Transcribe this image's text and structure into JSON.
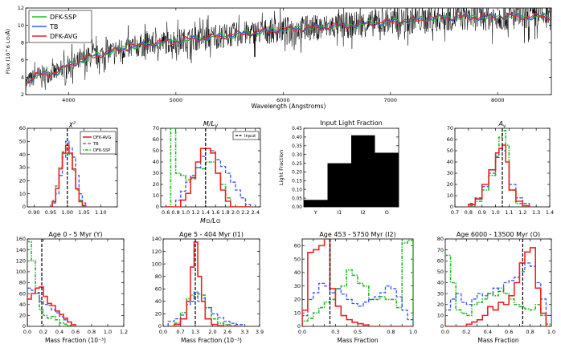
{
  "figure": {
    "spectrum_title": "",
    "colors": {
      "dfk_ssp": "#22bb22",
      "tb": "#3355ee",
      "dfk_avg": "#ee2222",
      "data": "#000000",
      "bar": "#000000"
    }
  },
  "chart_data": [
    {
      "id": "spectrum",
      "type": "line",
      "xlabel": "Wavelength (Angstroms)",
      "ylabel": "Flux (10^6 L⊙/Å)",
      "xlim": [
        3600,
        8500
      ],
      "ylim": [
        2,
        12
      ],
      "xticks": [
        4000,
        5000,
        6000,
        7000,
        8000
      ],
      "yticks": [
        2,
        4,
        6,
        8,
        10,
        12
      ],
      "legend": [
        "DFK-SSP",
        "TB",
        "DFK-AVG"
      ],
      "continuum_x": [
        3600,
        3700,
        3800,
        3900,
        4000,
        4200,
        4500,
        4800,
        5000,
        5300,
        5600,
        6000,
        6500,
        7000,
        7500,
        8000,
        8500
      ],
      "continuum_y": [
        3.3,
        4.2,
        4.4,
        4.6,
        5.4,
        6.3,
        7.3,
        7.9,
        8.2,
        8.6,
        9.0,
        9.5,
        9.9,
        10.4,
        10.9,
        11.0,
        11.0
      ]
    },
    {
      "id": "chi2",
      "type": "histogram",
      "title": "χ²",
      "xlim": [
        0.88,
        1.15
      ],
      "ylim": [
        0,
        60
      ],
      "xticks": [
        0.9,
        0.95,
        1.0,
        1.05,
        1.1
      ],
      "xtick_labels": [
        "0.90",
        "0.95",
        "1.00",
        "1.05",
        "1.10"
      ],
      "yticks": [
        0,
        10,
        20,
        30,
        40,
        50,
        60
      ],
      "input_line": 1.0,
      "legend": [
        "DFK-AVG",
        "TB",
        "DFK-SSP"
      ],
      "bin_edges": [
        0.955,
        0.965,
        0.975,
        0.985,
        0.995,
        1.005,
        1.015,
        1.025,
        1.035,
        1.045,
        1.055
      ],
      "series": [
        {
          "name": "DFK-AVG",
          "values": [
            4,
            14,
            29,
            41,
            47,
            41,
            29,
            14,
            4,
            1
          ]
        },
        {
          "name": "TB",
          "values": [
            3,
            10,
            24,
            38,
            50,
            45,
            38,
            24,
            10,
            3
          ]
        },
        {
          "name": "DFK-SSP",
          "values": [
            5,
            16,
            30,
            42,
            45,
            40,
            28,
            13,
            5,
            1
          ]
        }
      ]
    },
    {
      "id": "ml",
      "type": "histogram",
      "title": "M/L_V",
      "xlabel": "M⊙/L⊙",
      "xlim": [
        0.5,
        2.5
      ],
      "ylim": [
        0,
        70
      ],
      "xticks": [
        0.6,
        0.8,
        1.0,
        1.2,
        1.4,
        1.6,
        1.8,
        2.0,
        2.2,
        2.4
      ],
      "xtick_labels": [
        "0.6",
        "0.8",
        "1.0",
        "1.2",
        "1.4",
        "1.6",
        "1.8",
        "2.0",
        "2.2",
        "2.4"
      ],
      "yticks": [
        0,
        10,
        20,
        30,
        40,
        50,
        60,
        70
      ],
      "input_line": 1.4,
      "input_label": "Input",
      "bin_edges": [
        0.6,
        0.7,
        0.8,
        0.9,
        1.0,
        1.1,
        1.2,
        1.3,
        1.4,
        1.5,
        1.6,
        1.7,
        1.8,
        1.9,
        2.0,
        2.1,
        2.2,
        2.3
      ],
      "series": [
        {
          "name": "DFK-AVG",
          "values": [
            0,
            0,
            0,
            6,
            12,
            26,
            40,
            52,
            52,
            48,
            30,
            15,
            5,
            0,
            0,
            0,
            0
          ]
        },
        {
          "name": "TB",
          "values": [
            0,
            0,
            6,
            14,
            22,
            28,
            35,
            45,
            52,
            50,
            42,
            36,
            30,
            22,
            15,
            8,
            2
          ]
        },
        {
          "name": "DFK-SSP",
          "values": [
            0,
            70,
            30,
            28,
            24,
            25,
            35,
            34,
            40,
            40,
            30,
            20,
            8,
            0,
            0,
            0,
            0
          ]
        }
      ]
    },
    {
      "id": "lightfrac",
      "type": "bar",
      "title": "Input Light Fraction",
      "ylabel": "Light Fraction",
      "categories": [
        "Y",
        "I1",
        "I2",
        "O"
      ],
      "values": [
        0.04,
        0.25,
        0.41,
        0.31
      ],
      "ylim": [
        0,
        0.45
      ],
      "yticks": [
        0,
        0.05,
        0.1,
        0.15,
        0.2,
        0.25,
        0.3,
        0.35,
        0.4,
        0.45
      ],
      "ytick_labels": [
        "0.00",
        "0.05",
        "0.10",
        "0.15",
        "0.20",
        "0.25",
        "0.30",
        "0.35",
        "0.40",
        "0.45"
      ]
    },
    {
      "id": "av",
      "type": "histogram",
      "title": "A_v",
      "xlim": [
        0.7,
        1.4
      ],
      "ylim": [
        0,
        70
      ],
      "xticks": [
        0.7,
        0.8,
        0.9,
        1.0,
        1.1,
        1.2,
        1.3,
        1.4
      ],
      "xtick_labels": [
        "0.7",
        "0.8",
        "0.9",
        "1.0",
        "1.1",
        "1.2",
        "1.3",
        "1.4"
      ],
      "yticks": [
        0,
        10,
        20,
        30,
        40,
        50,
        60,
        70
      ],
      "input_line": 1.05,
      "bin_edges": [
        0.8,
        0.85,
        0.9,
        0.95,
        1.0,
        1.025,
        1.05,
        1.075,
        1.1,
        1.15,
        1.2,
        1.25
      ],
      "series": [
        {
          "name": "DFK-AVG",
          "values": [
            2,
            7,
            20,
            33,
            48,
            52,
            55,
            40,
            15,
            5,
            1
          ]
        },
        {
          "name": "TB",
          "values": [
            3,
            8,
            18,
            30,
            44,
            52,
            50,
            40,
            20,
            8,
            3
          ]
        },
        {
          "name": "DFK-SSP",
          "values": [
            1,
            5,
            15,
            28,
            45,
            62,
            68,
            55,
            15,
            3,
            0
          ]
        }
      ]
    },
    {
      "id": "age_y",
      "type": "histogram",
      "title": "Age 0 - 5 Myr (Y)",
      "xlabel": "Mass Fraction (10⁻³)",
      "xlim": [
        0,
        1.2
      ],
      "ylim": [
        0,
        160
      ],
      "xticks": [
        0,
        0.2,
        0.4,
        0.6,
        0.8,
        1.0,
        1.2
      ],
      "xtick_labels": [
        "0.0",
        "0.2",
        "0.4",
        "0.6",
        "0.8",
        "1.0",
        "1.2"
      ],
      "yticks": [
        0,
        20,
        40,
        60,
        80,
        100,
        120,
        140,
        160
      ],
      "input_line": 0.18,
      "bin_edges": [
        0,
        0.05,
        0.1,
        0.15,
        0.2,
        0.25,
        0.3,
        0.35,
        0.4,
        0.45,
        0.5,
        0.55,
        0.6
      ],
      "series": [
        {
          "name": "DFK-AVG",
          "values": [
            50,
            60,
            70,
            72,
            55,
            42,
            38,
            28,
            22,
            15,
            8,
            3
          ]
        },
        {
          "name": "TB",
          "values": [
            70,
            66,
            62,
            46,
            40,
            38,
            30,
            25,
            18,
            12,
            8,
            3
          ]
        },
        {
          "name": "DFK-SSP",
          "values": [
            155,
            120,
            60,
            30,
            20,
            15,
            18,
            12,
            6,
            4,
            2,
            0
          ]
        }
      ]
    },
    {
      "id": "age_i1",
      "type": "histogram",
      "title": "Age 5 - 404 Myr (I1)",
      "xlabel": "Mass Fraction (10⁻³)",
      "xlim": [
        0,
        3.9
      ],
      "ylim": [
        0,
        140
      ],
      "xticks": [
        0,
        0.7,
        1.3,
        2.0,
        2.6,
        3.3,
        3.9
      ],
      "xtick_labels": [
        "0.0",
        "0.7",
        "1.3",
        "2.0",
        "2.6",
        "3.3",
        "3.9"
      ],
      "yticks": [
        0,
        20,
        40,
        60,
        80,
        100,
        120,
        140
      ],
      "input_line": 1.3,
      "bin_edges": [
        0.2,
        0.45,
        0.7,
        0.95,
        1.1,
        1.25,
        1.4,
        1.55,
        1.7,
        1.95,
        2.2,
        2.45,
        2.7,
        2.95,
        3.2
      ],
      "series": [
        {
          "name": "DFK-AVG",
          "values": [
            0,
            3,
            12,
            40,
            95,
            135,
            80,
            40,
            12,
            3,
            1,
            0,
            0,
            0
          ]
        },
        {
          "name": "TB",
          "values": [
            8,
            12,
            18,
            35,
            40,
            55,
            40,
            45,
            30,
            20,
            14,
            8,
            5,
            3
          ]
        },
        {
          "name": "DFK-SSP",
          "values": [
            0,
            5,
            22,
            44,
            50,
            48,
            52,
            50,
            30,
            12,
            5,
            3,
            1,
            0
          ]
        }
      ]
    },
    {
      "id": "age_i2",
      "type": "histogram",
      "title": "Age 453 - 5750 Myr (I2)",
      "xlabel": "Mass Fraction",
      "xlim": [
        0,
        1.0
      ],
      "ylim": [
        0,
        65
      ],
      "xticks": [
        0,
        0.1,
        0.2,
        0.3,
        0.4,
        0.5,
        0.6,
        0.7,
        0.8,
        0.9,
        1.0
      ],
      "xtick_labels": [
        "0.0",
        "",
        "",
        "0.3",
        "",
        "0.5",
        "",
        "",
        "0.8",
        "",
        "1.0"
      ],
      "yticks": [
        0,
        10,
        20,
        30,
        40,
        50,
        60
      ],
      "input_line": 0.25,
      "bin_edges": [
        0,
        0.05,
        0.1,
        0.15,
        0.2,
        0.25,
        0.3,
        0.35,
        0.4,
        0.45,
        0.5,
        0.55,
        0.6,
        0.65,
        0.7,
        0.75,
        0.8,
        0.85,
        0.9,
        0.95,
        1.0
      ],
      "series": [
        {
          "name": "DFK-AVG",
          "values": [
            12,
            55,
            57,
            60,
            65,
            28,
            15,
            8,
            5,
            3,
            2,
            1,
            0,
            0,
            0,
            0,
            0,
            0,
            0,
            0
          ]
        },
        {
          "name": "TB",
          "values": [
            8,
            20,
            25,
            32,
            30,
            25,
            28,
            24,
            20,
            17,
            15,
            18,
            20,
            22,
            25,
            30,
            28,
            22,
            12,
            5
          ]
        },
        {
          "name": "DFK-SSP",
          "values": [
            4,
            6,
            10,
            14,
            18,
            20,
            28,
            30,
            42,
            38,
            32,
            30,
            20,
            20,
            22,
            20,
            20,
            14,
            62,
            64
          ]
        }
      ]
    },
    {
      "id": "age_o",
      "type": "histogram",
      "title": "Age 6000 - 13500 Myr (O)",
      "xlabel": "Mass Fraction",
      "xlim": [
        0,
        1.0
      ],
      "ylim": [
        0,
        80
      ],
      "xticks": [
        0,
        0.1,
        0.2,
        0.3,
        0.4,
        0.5,
        0.6,
        0.7,
        0.8,
        0.9,
        1.0
      ],
      "xtick_labels": [
        "0.0",
        "",
        "0.2",
        "",
        "0.4",
        "",
        "0.6",
        "",
        "0.8",
        "",
        "1.0"
      ],
      "yticks": [
        0,
        10,
        20,
        30,
        40,
        50,
        60,
        70,
        80
      ],
      "input_line": 0.73,
      "bin_edges": [
        0,
        0.05,
        0.1,
        0.15,
        0.2,
        0.25,
        0.3,
        0.35,
        0.4,
        0.45,
        0.5,
        0.55,
        0.6,
        0.65,
        0.7,
        0.75,
        0.8,
        0.85,
        0.9,
        0.95,
        1.0
      ],
      "series": [
        {
          "name": "DFK-AVG",
          "values": [
            0,
            0,
            0,
            0,
            2,
            4,
            6,
            10,
            18,
            15,
            22,
            20,
            28,
            40,
            58,
            68,
            72,
            35,
            12,
            0
          ]
        },
        {
          "name": "TB",
          "values": [
            15,
            25,
            30,
            22,
            20,
            25,
            30,
            28,
            30,
            35,
            32,
            40,
            42,
            45,
            50,
            58,
            55,
            40,
            25,
            10
          ]
        },
        {
          "name": "DFK-SSP",
          "values": [
            65,
            40,
            15,
            12,
            10,
            20,
            22,
            25,
            30,
            28,
            35,
            30,
            25,
            20,
            18,
            16,
            15,
            20,
            10,
            2
          ]
        }
      ]
    }
  ]
}
